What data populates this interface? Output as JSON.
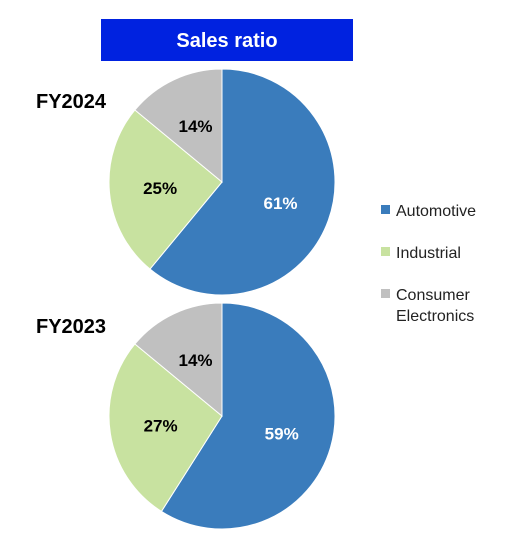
{
  "chart_data": {
    "type": "pie",
    "title": "Sales ratio",
    "title_background": "#0022e0",
    "legend": {
      "placement": "right",
      "entries": [
        {
          "name": "Automotive",
          "lines": [
            "Automotive"
          ],
          "color": "#3a7cbc"
        },
        {
          "name": "Industrial",
          "lines": [
            "Industrial"
          ],
          "color": "#c8e2a0"
        },
        {
          "name": "Consumer Electronics",
          "lines": [
            "Consumer",
            "Electronics"
          ],
          "color": "#c0c0c0"
        }
      ]
    },
    "charts": [
      {
        "label": "FY2024",
        "slices": [
          {
            "category": "Automotive",
            "value": 61,
            "label": "61%",
            "color": "#3a7cbc",
            "label_color": "#ffffff"
          },
          {
            "category": "Industrial",
            "value": 25,
            "label": "25%",
            "color": "#c8e2a0",
            "label_color": "#000000"
          },
          {
            "category": "Consumer Electronics",
            "value": 14,
            "label": "14%",
            "color": "#c0c0c0",
            "label_color": "#000000"
          }
        ]
      },
      {
        "label": "FY2023",
        "slices": [
          {
            "category": "Automotive",
            "value": 59,
            "label": "59%",
            "color": "#3a7cbc",
            "label_color": "#ffffff"
          },
          {
            "category": "Industrial",
            "value": 27,
            "label": "27%",
            "color": "#c8e2a0",
            "label_color": "#000000"
          },
          {
            "category": "Consumer Electronics",
            "value": 14,
            "label": "14%",
            "color": "#c0c0c0",
            "label_color": "#000000"
          }
        ]
      }
    ]
  }
}
